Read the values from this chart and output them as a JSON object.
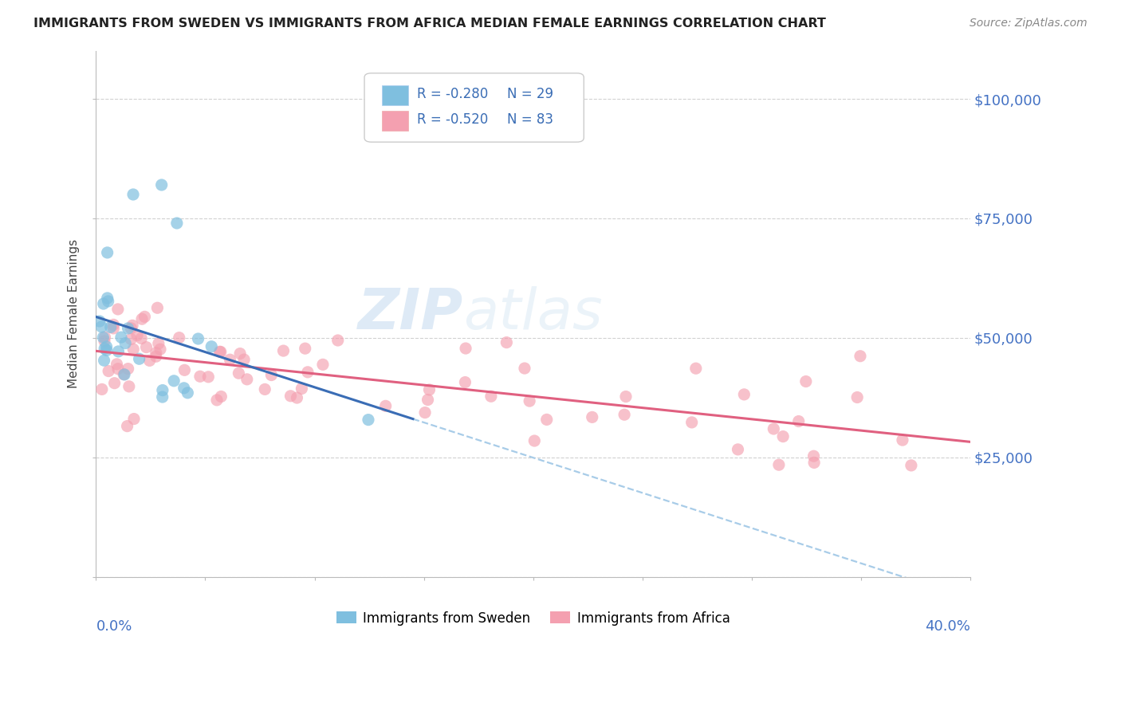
{
  "title": "IMMIGRANTS FROM SWEDEN VS IMMIGRANTS FROM AFRICA MEDIAN FEMALE EARNINGS CORRELATION CHART",
  "source": "Source: ZipAtlas.com",
  "ylabel": "Median Female Earnings",
  "xlim": [
    0.0,
    0.4
  ],
  "ylim": [
    0,
    110000
  ],
  "sweden_color": "#7fbfdf",
  "africa_color": "#f4a0b0",
  "sweden_line_color": "#3a6db5",
  "africa_line_color": "#e06080",
  "dashed_line_color": "#a8cce8",
  "legend_R_sweden": "-0.280",
  "legend_N_sweden": "29",
  "legend_R_africa": "-0.520",
  "legend_N_africa": "83",
  "sweden_seed": 42,
  "africa_seed": 7,
  "watermark": "ZIPatlas",
  "watermark_ZIP": "ZIP",
  "watermark_atlas": "atlas"
}
